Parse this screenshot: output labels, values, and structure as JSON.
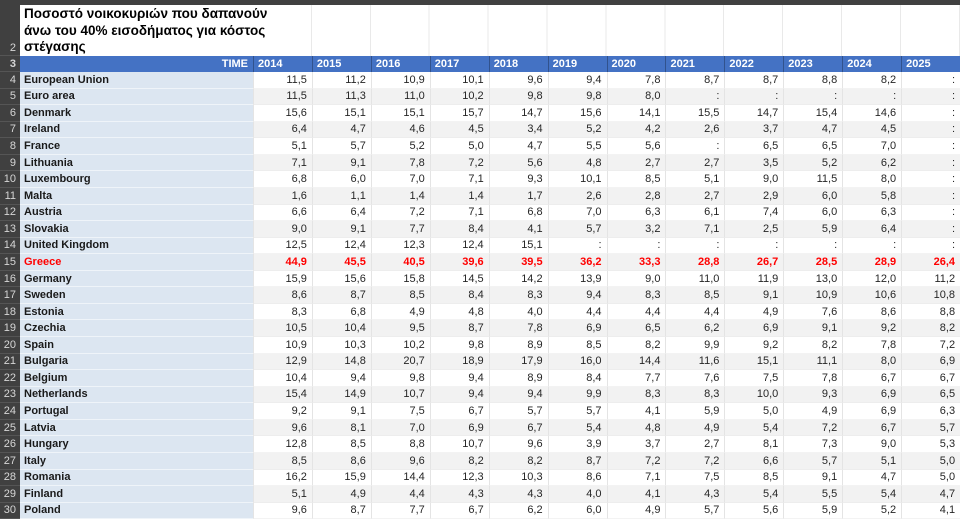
{
  "sheet": {
    "title": "Ποσοστό νοικοκυριών που δαπανούν\nάνω του 40% εισοδήματος για κόστος\nστέγασης",
    "title_row_number": "2",
    "header_row_number": "3",
    "time_label": "TIME",
    "years": [
      "2014",
      "2015",
      "2016",
      "2017",
      "2018",
      "2019",
      "2020",
      "2021",
      "2022",
      "2023",
      "2024",
      "2025"
    ],
    "missing_symbol": ":",
    "colors": {
      "header_blue": "#4472C4",
      "country_fill": "#DCE6F1",
      "band_fill": "#F2F2F2",
      "rownum_fill": "#404040",
      "highlight_red": "#FF0000"
    },
    "chart_data": {
      "type": "table",
      "title": "Ποσοστό νοικοκυριών που δαπανούν άνω του 40% εισοδήματος για κόστος στέγασης",
      "columns": [
        "TIME",
        "2014",
        "2015",
        "2016",
        "2017",
        "2018",
        "2019",
        "2020",
        "2021",
        "2022",
        "2023",
        "2024",
        "2025"
      ]
    },
    "rows": [
      {
        "num": 4,
        "country": "European Union",
        "highlight": false,
        "values": [
          "11,5",
          "11,2",
          "10,9",
          "10,1",
          "9,6",
          "9,4",
          "7,8",
          "8,7",
          "8,7",
          "8,8",
          "8,2",
          ":"
        ]
      },
      {
        "num": 5,
        "country": "Euro area",
        "highlight": false,
        "values": [
          "11,5",
          "11,3",
          "11,0",
          "10,2",
          "9,8",
          "9,8",
          "8,0",
          ":",
          ":",
          ":",
          ":",
          ":"
        ]
      },
      {
        "num": 6,
        "country": "Denmark",
        "highlight": false,
        "values": [
          "15,6",
          "15,1",
          "15,1",
          "15,7",
          "14,7",
          "15,6",
          "14,1",
          "15,5",
          "14,7",
          "15,4",
          "14,6",
          ":"
        ]
      },
      {
        "num": 7,
        "country": "Ireland",
        "highlight": false,
        "values": [
          "6,4",
          "4,7",
          "4,6",
          "4,5",
          "3,4",
          "5,2",
          "4,2",
          "2,6",
          "3,7",
          "4,7",
          "4,5",
          ":"
        ]
      },
      {
        "num": 8,
        "country": "France",
        "highlight": false,
        "values": [
          "5,1",
          "5,7",
          "5,2",
          "5,0",
          "4,7",
          "5,5",
          "5,6",
          ":",
          "6,5",
          "6,5",
          "7,0",
          ":"
        ]
      },
      {
        "num": 9,
        "country": "Lithuania",
        "highlight": false,
        "values": [
          "7,1",
          "9,1",
          "7,8",
          "7,2",
          "5,6",
          "4,8",
          "2,7",
          "2,7",
          "3,5",
          "5,2",
          "6,2",
          ":"
        ]
      },
      {
        "num": 10,
        "country": "Luxembourg",
        "highlight": false,
        "values": [
          "6,8",
          "6,0",
          "7,0",
          "7,1",
          "9,3",
          "10,1",
          "8,5",
          "5,1",
          "9,0",
          "11,5",
          "8,0",
          ":"
        ]
      },
      {
        "num": 11,
        "country": "Malta",
        "highlight": false,
        "values": [
          "1,6",
          "1,1",
          "1,4",
          "1,4",
          "1,7",
          "2,6",
          "2,8",
          "2,7",
          "2,9",
          "6,0",
          "5,8",
          ":"
        ]
      },
      {
        "num": 12,
        "country": "Austria",
        "highlight": false,
        "values": [
          "6,6",
          "6,4",
          "7,2",
          "7,1",
          "6,8",
          "7,0",
          "6,3",
          "6,1",
          "7,4",
          "6,0",
          "6,3",
          ":"
        ]
      },
      {
        "num": 13,
        "country": "Slovakia",
        "highlight": false,
        "values": [
          "9,0",
          "9,1",
          "7,7",
          "8,4",
          "4,1",
          "5,7",
          "3,2",
          "7,1",
          "2,5",
          "5,9",
          "6,4",
          ":"
        ]
      },
      {
        "num": 14,
        "country": "United Kingdom",
        "highlight": false,
        "values": [
          "12,5",
          "12,4",
          "12,3",
          "12,4",
          "15,1",
          ":",
          ":",
          ":",
          ":",
          ":",
          ":",
          ":"
        ]
      },
      {
        "num": 15,
        "country": "Greece",
        "highlight": true,
        "values": [
          "44,9",
          "45,5",
          "40,5",
          "39,6",
          "39,5",
          "36,2",
          "33,3",
          "28,8",
          "26,7",
          "28,5",
          "28,9",
          "26,4"
        ]
      },
      {
        "num": 16,
        "country": "Germany",
        "highlight": false,
        "values": [
          "15,9",
          "15,6",
          "15,8",
          "14,5",
          "14,2",
          "13,9",
          "9,0",
          "11,0",
          "11,9",
          "13,0",
          "12,0",
          "11,2"
        ]
      },
      {
        "num": 17,
        "country": "Sweden",
        "highlight": false,
        "values": [
          "8,6",
          "8,7",
          "8,5",
          "8,4",
          "8,3",
          "9,4",
          "8,3",
          "8,5",
          "9,1",
          "10,9",
          "10,6",
          "10,8"
        ]
      },
      {
        "num": 18,
        "country": "Estonia",
        "highlight": false,
        "values": [
          "8,3",
          "6,8",
          "4,9",
          "4,8",
          "4,0",
          "4,4",
          "4,4",
          "4,4",
          "4,9",
          "7,6",
          "8,6",
          "8,8"
        ]
      },
      {
        "num": 19,
        "country": "Czechia",
        "highlight": false,
        "values": [
          "10,5",
          "10,4",
          "9,5",
          "8,7",
          "7,8",
          "6,9",
          "6,5",
          "6,2",
          "6,9",
          "9,1",
          "9,2",
          "8,2"
        ]
      },
      {
        "num": 20,
        "country": "Spain",
        "highlight": false,
        "values": [
          "10,9",
          "10,3",
          "10,2",
          "9,8",
          "8,9",
          "8,5",
          "8,2",
          "9,9",
          "9,2",
          "8,2",
          "7,8",
          "7,2"
        ]
      },
      {
        "num": 21,
        "country": "Bulgaria",
        "highlight": false,
        "values": [
          "12,9",
          "14,8",
          "20,7",
          "18,9",
          "17,9",
          "16,0",
          "14,4",
          "11,6",
          "15,1",
          "11,1",
          "8,0",
          "6,9"
        ]
      },
      {
        "num": 22,
        "country": "Belgium",
        "highlight": false,
        "values": [
          "10,4",
          "9,4",
          "9,8",
          "9,4",
          "8,9",
          "8,4",
          "7,7",
          "7,6",
          "7,5",
          "7,8",
          "6,7",
          "6,7"
        ]
      },
      {
        "num": 23,
        "country": "Netherlands",
        "highlight": false,
        "values": [
          "15,4",
          "14,9",
          "10,7",
          "9,4",
          "9,4",
          "9,9",
          "8,3",
          "8,3",
          "10,0",
          "9,3",
          "6,9",
          "6,5"
        ]
      },
      {
        "num": 24,
        "country": "Portugal",
        "highlight": false,
        "values": [
          "9,2",
          "9,1",
          "7,5",
          "6,7",
          "5,7",
          "5,7",
          "4,1",
          "5,9",
          "5,0",
          "4,9",
          "6,9",
          "6,3"
        ]
      },
      {
        "num": 25,
        "country": "Latvia",
        "highlight": false,
        "values": [
          "9,6",
          "8,1",
          "7,0",
          "6,9",
          "6,7",
          "5,4",
          "4,8",
          "4,9",
          "5,4",
          "7,2",
          "6,7",
          "5,7"
        ]
      },
      {
        "num": 26,
        "country": "Hungary",
        "highlight": false,
        "values": [
          "12,8",
          "8,5",
          "8,8",
          "10,7",
          "9,6",
          "3,9",
          "3,7",
          "2,7",
          "8,1",
          "7,3",
          "9,0",
          "5,3"
        ]
      },
      {
        "num": 27,
        "country": "Italy",
        "highlight": false,
        "values": [
          "8,5",
          "8,6",
          "9,6",
          "8,2",
          "8,2",
          "8,7",
          "7,2",
          "7,2",
          "6,6",
          "5,7",
          "5,1",
          "5,0"
        ]
      },
      {
        "num": 28,
        "country": "Romania",
        "highlight": false,
        "values": [
          "16,2",
          "15,9",
          "14,4",
          "12,3",
          "10,3",
          "8,6",
          "7,1",
          "7,5",
          "8,5",
          "9,1",
          "4,7",
          "5,0"
        ]
      },
      {
        "num": 29,
        "country": "Finland",
        "highlight": false,
        "values": [
          "5,1",
          "4,9",
          "4,4",
          "4,3",
          "4,3",
          "4,0",
          "4,1",
          "4,3",
          "5,4",
          "5,5",
          "5,4",
          "4,7"
        ]
      },
      {
        "num": 30,
        "country": "Poland",
        "highlight": false,
        "values": [
          "9,6",
          "8,7",
          "7,7",
          "6,7",
          "6,2",
          "6,0",
          "4,9",
          "5,7",
          "5,6",
          "5,9",
          "5,2",
          "4,1"
        ]
      }
    ]
  }
}
